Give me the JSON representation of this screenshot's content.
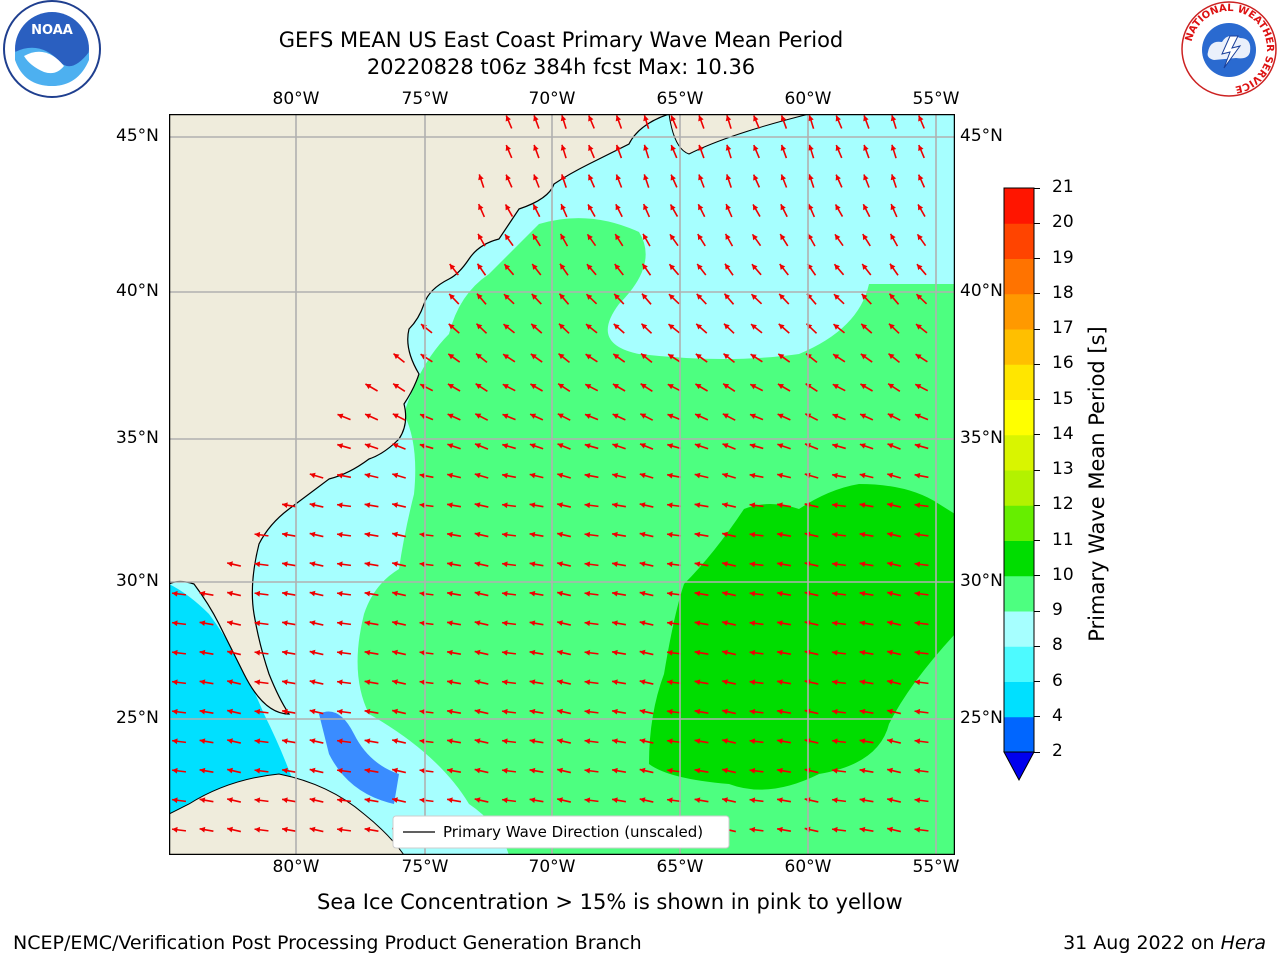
{
  "title": {
    "line1": "GEFS MEAN US East Coast Primary Wave Mean Period",
    "line2": "20220828 t06z 384h fcst   Max: 10.36"
  },
  "map": {
    "lon_labels": [
      "80°W",
      "75°W",
      "70°W",
      "65°W",
      "60°W",
      "55°W"
    ],
    "lat_labels": [
      "45°N",
      "40°N",
      "35°N",
      "30°N",
      "25°N"
    ],
    "legend_label": "Primary Wave Direction (unscaled)",
    "arrow_color": "#ee0000",
    "land_color": "#efecdc",
    "grid_color": "#b0b0b0"
  },
  "colorbar": {
    "label": "Primary Wave Mean Period [s]",
    "ticks": [
      "2",
      "4",
      "6",
      "8",
      "9",
      "10",
      "11",
      "12",
      "13",
      "14",
      "15",
      "16",
      "17",
      "18",
      "19",
      "20",
      "21"
    ],
    "colors": [
      "#0066ff",
      "#00e0ff",
      "#4dfaff",
      "#a6ffff",
      "#4dff80",
      "#00dd00",
      "#66ee00",
      "#b3f200",
      "#d9f500",
      "#ffff00",
      "#ffe600",
      "#ffbf00",
      "#ff9900",
      "#ff7300",
      "#ff4400",
      "#ff1500"
    ],
    "extend_color": "#0000ee"
  },
  "note": "Sea Ice Concentration > 15% is shown in pink to yellow",
  "footer": {
    "left": "NCEP/EMC/Verification Post Processing Product Generation Branch",
    "date": "31 Aug 2022 on",
    "machine": "Hera"
  },
  "logos": {
    "noaa": "NOAA",
    "nws_ring": "NATIONAL WEATHER SERVICE"
  }
}
